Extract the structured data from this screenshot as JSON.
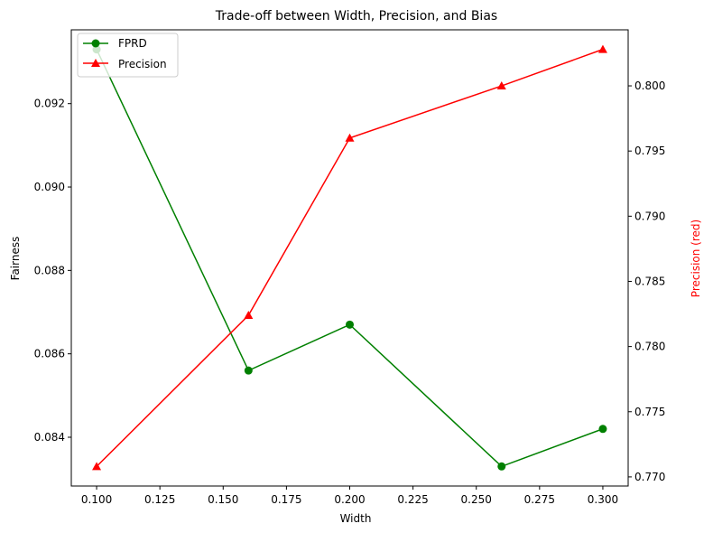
{
  "chart_data": {
    "type": "line",
    "title": "Trade-off between Width, Precision, and Bias",
    "xlabel": "Width",
    "ylabel_left": "Fairness",
    "ylabel_right": "Precision (red)",
    "x": [
      0.1,
      0.16,
      0.2,
      0.26,
      0.3
    ],
    "xlim": [
      0.09,
      0.31
    ],
    "ylim_left": [
      0.08283,
      0.09377
    ],
    "ylim_right": [
      0.7693,
      0.8043
    ],
    "x_ticks": [
      "0.100",
      "0.125",
      "0.150",
      "0.175",
      "0.200",
      "0.225",
      "0.250",
      "0.275",
      "0.300"
    ],
    "x_tick_values": [
      0.1,
      0.125,
      0.15,
      0.175,
      0.2,
      0.225,
      0.25,
      0.275,
      0.3
    ],
    "y_left_ticks": [
      "0.084",
      "0.086",
      "0.088",
      "0.090",
      "0.092"
    ],
    "y_left_tick_values": [
      0.084,
      0.086,
      0.088,
      0.09,
      0.092
    ],
    "y_right_ticks": [
      "0.770",
      "0.775",
      "0.780",
      "0.785",
      "0.790",
      "0.795",
      "0.800"
    ],
    "y_right_tick_values": [
      0.77,
      0.775,
      0.78,
      0.785,
      0.79,
      0.795,
      0.8
    ],
    "series": [
      {
        "name": "FPRD",
        "axis": "left",
        "color": "#008000",
        "marker": "circle",
        "values": [
          0.0933,
          0.0856,
          0.0867,
          0.0833,
          0.0842
        ]
      },
      {
        "name": "Precision",
        "axis": "right",
        "color": "#ff0000",
        "marker": "triangle",
        "values": [
          0.7708,
          0.7824,
          0.796,
          0.8,
          0.8028
        ]
      }
    ],
    "legend_position": "top-left",
    "grid": false
  }
}
